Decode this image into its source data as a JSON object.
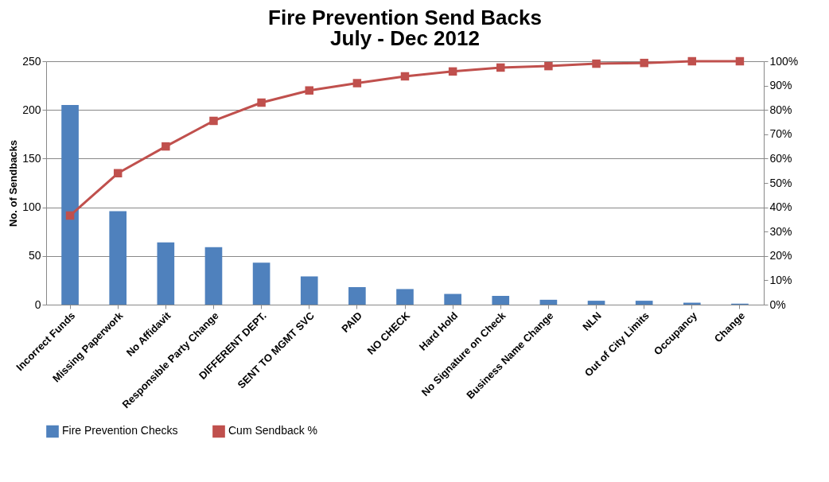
{
  "chart_data": {
    "type": "bar",
    "title": "Fire Prevention Send Backs",
    "subtitle": "July - Dec 2012",
    "ylabel": "No. of Sendbacks",
    "categories": [
      "Incorrect Funds",
      "Missing Paperwork",
      "No Affidavit",
      "Responsible Party Change",
      "DIFFERENT DEPT.",
      "SENT TO MGMT SVC",
      "PAID",
      "NO CHECK",
      "Hard Hold",
      "No Signature on Check",
      "Business Name Change",
      "NLN",
      "Out of City Limits",
      "Occupancy",
      "Change"
    ],
    "series": [
      {
        "name": "Fire Prevention Checks",
        "color": "#4f81bd",
        "values": [
          205,
          96,
          64,
          59,
          43,
          29,
          18,
          16,
          11,
          9,
          5,
          4,
          4,
          2,
          1
        ]
      },
      {
        "name": "Cum Sendback %",
        "type": "line",
        "axis": "y2",
        "color": "#c0504d",
        "marker": "square",
        "values": [
          36.6,
          54,
          65,
          75.5,
          83,
          88,
          91,
          93.8,
          95.8,
          97.4,
          98,
          99,
          99.3,
          100,
          100
        ]
      }
    ],
    "ylim": [
      0,
      250
    ],
    "yticks": [
      0,
      50,
      100,
      150,
      200,
      250
    ],
    "y2lim": [
      0,
      100
    ],
    "y2ticks": [
      {
        "value": 0,
        "label": "0%"
      },
      {
        "value": 10,
        "label": "10%"
      },
      {
        "value": 20,
        "label": "20%"
      },
      {
        "value": 30,
        "label": "30%"
      },
      {
        "value": 40,
        "label": "40%"
      },
      {
        "value": 50,
        "label": "50%"
      },
      {
        "value": 60,
        "label": "60%"
      },
      {
        "value": 70,
        "label": "70%"
      },
      {
        "value": 80,
        "label": "80%"
      },
      {
        "value": 90,
        "label": "90%"
      },
      {
        "value": 100,
        "label": "100%"
      }
    ],
    "grid": "y",
    "legend": "bottom"
  }
}
